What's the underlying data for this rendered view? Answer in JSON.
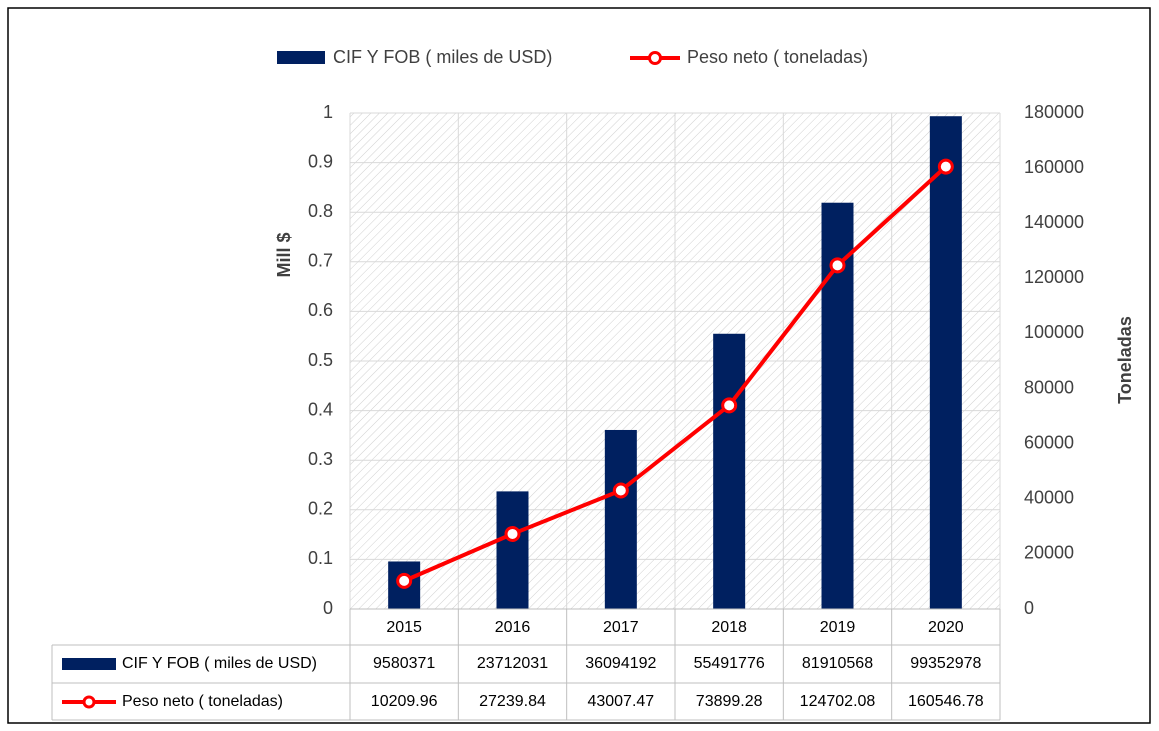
{
  "chart_data": {
    "type": "bar_line",
    "categories": [
      "2015",
      "2016",
      "2017",
      "2018",
      "2019",
      "2020"
    ],
    "series": [
      {
        "name": "CIF Y FOB ( miles de USD)",
        "color": "#002060",
        "type": "bar",
        "axis": "y",
        "values": [
          9580371,
          23712031,
          36094192,
          55491776,
          81910568,
          99352978
        ]
      },
      {
        "name": "Peso neto ( toneladas)",
        "color": "#ff0000",
        "type": "line",
        "axis": "y2",
        "values": [
          10209.96,
          27239.84,
          43007.47,
          73899.28,
          124702.08,
          160546.78
        ]
      }
    ],
    "ylabel": "Mill $",
    "y2label": "Toneladas",
    "ylim": [
      0,
      100000000
    ],
    "yticks": [
      0,
      {
        "value": 10000000,
        "label": "0.1"
      },
      {
        "value": 20000000,
        "label": "0.2"
      },
      {
        "value": 30000000,
        "label": "0.3"
      },
      {
        "value": 40000000,
        "label": "0.4"
      },
      {
        "value": 50000000,
        "label": "0.5"
      },
      {
        "value": 60000000,
        "label": "0.6"
      },
      {
        "value": 70000000,
        "label": "0.7"
      },
      {
        "value": 80000000,
        "label": "0.8"
      },
      {
        "value": 90000000,
        "label": "0.9"
      },
      {
        "value": 100000000,
        "label": "1"
      }
    ],
    "y2lim": [
      0,
      180000
    ],
    "y2ticks": [
      0,
      20000,
      40000,
      60000,
      80000,
      100000,
      120000,
      140000,
      160000,
      180000
    ],
    "grid": true,
    "legend": "top",
    "data_table": true
  }
}
